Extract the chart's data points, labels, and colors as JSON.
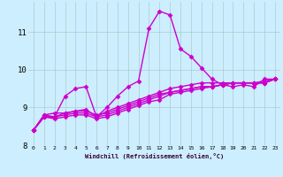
{
  "title": "",
  "xlabel": "Windchill (Refroidissement éolien,°C)",
  "ylabel": "",
  "xlim": [
    -0.5,
    23.5
  ],
  "ylim": [
    8.0,
    11.8
  ],
  "xticks": [
    0,
    1,
    2,
    3,
    4,
    5,
    6,
    7,
    8,
    9,
    10,
    11,
    12,
    13,
    14,
    15,
    16,
    17,
    18,
    19,
    20,
    21,
    22,
    23
  ],
  "yticks": [
    8,
    9,
    10,
    11
  ],
  "bg_color": "#cceeff",
  "line_color": "#cc00cc",
  "grid_color": "#aacccc",
  "line_width": 1.0,
  "marker": "D",
  "marker_size": 2.5,
  "series": [
    [
      8.4,
      8.8,
      8.75,
      9.3,
      9.5,
      9.55,
      8.75,
      9.0,
      9.3,
      9.55,
      9.7,
      11.1,
      11.55,
      11.45,
      10.55,
      10.35,
      10.05,
      9.75,
      9.6,
      9.55,
      9.6,
      9.55,
      9.75,
      9.75
    ],
    [
      8.4,
      8.8,
      8.85,
      8.85,
      8.9,
      8.95,
      8.75,
      8.9,
      9.0,
      9.1,
      9.2,
      9.3,
      9.4,
      9.5,
      9.55,
      9.6,
      9.65,
      9.65,
      9.65,
      9.65,
      9.65,
      9.65,
      9.65,
      9.75
    ],
    [
      8.4,
      8.75,
      8.75,
      8.85,
      8.9,
      8.9,
      8.8,
      8.85,
      8.95,
      9.05,
      9.15,
      9.25,
      9.35,
      9.4,
      9.45,
      9.5,
      9.55,
      9.55,
      9.6,
      9.65,
      9.65,
      9.65,
      9.65,
      9.75
    ],
    [
      8.4,
      8.75,
      8.75,
      8.8,
      8.85,
      8.85,
      8.75,
      8.8,
      8.9,
      9.0,
      9.1,
      9.2,
      9.3,
      9.4,
      9.45,
      9.5,
      9.55,
      9.55,
      9.6,
      9.65,
      9.65,
      9.65,
      9.65,
      9.75
    ],
    [
      8.4,
      8.75,
      8.7,
      8.75,
      8.8,
      8.8,
      8.7,
      8.75,
      8.85,
      8.95,
      9.05,
      9.15,
      9.2,
      9.35,
      9.4,
      9.45,
      9.5,
      9.55,
      9.6,
      9.65,
      9.65,
      9.65,
      9.7,
      9.75
    ]
  ],
  "xlabel_fontsize": 5.0,
  "xtick_fontsize": 4.5,
  "ytick_fontsize": 6.5
}
